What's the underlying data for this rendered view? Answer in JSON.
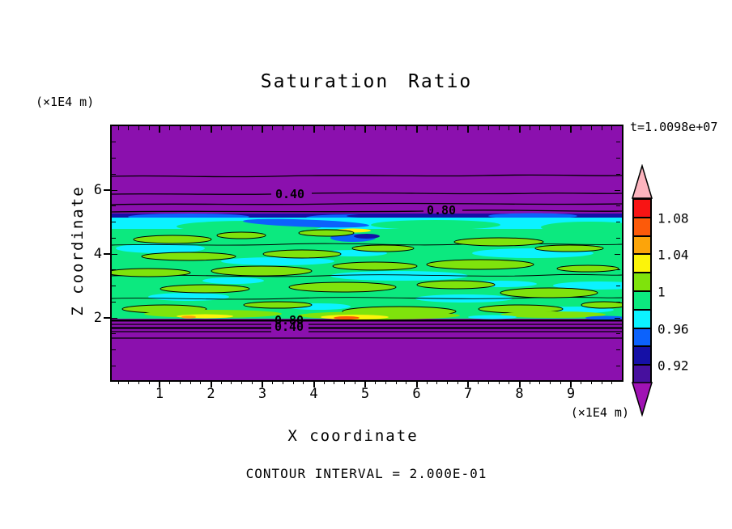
{
  "title": "Saturation Ratio",
  "time_label": "t=1.0098e+07",
  "footer_note": "CONTOUR INTERVAL = 2.000E-01",
  "axes": {
    "x": {
      "title": "X coordinate",
      "unit": "(×1E4 m)",
      "tick_labels": [
        "1",
        "2",
        "3",
        "4",
        "5",
        "6",
        "7",
        "8",
        "9"
      ]
    },
    "y": {
      "title": "Z coordinate",
      "unit": "(×1E4 m)",
      "tick_labels": [
        "6",
        "4",
        "2"
      ],
      "tick_values": [
        6,
        4,
        2
      ]
    }
  },
  "plot": {
    "contour_labels": {
      "upper_040": "0.40",
      "upper_080": "0.80",
      "lower_080": "0.80",
      "lower_040": "0.40"
    }
  },
  "colorbar": {
    "over_color": "#FCB4BE",
    "under_color": "#A012B4",
    "boxes": [
      {
        "color": "#F81414",
        "label": "1.08"
      },
      {
        "color": "#FC5A0A",
        "label": ""
      },
      {
        "color": "#FCA40A",
        "label": "1.04"
      },
      {
        "color": "#FCF40A",
        "label": ""
      },
      {
        "color": "#7FE30C",
        "label": "1"
      },
      {
        "color": "#0CE97F",
        "label": ""
      },
      {
        "color": "#0CF2FF",
        "label": "0.96"
      },
      {
        "color": "#0C62FC",
        "label": ""
      },
      {
        "color": "#1510A6",
        "label": "0.92"
      },
      {
        "color": "#47109E",
        "label": ""
      }
    ]
  },
  "chart_data": {
    "type": "heatmap",
    "subtype": "filled-contour",
    "title": "Saturation Ratio",
    "annotation_time": "t=1.0098e+07",
    "xlabel": "X coordinate",
    "x_unit": "(×1E4 m)",
    "ylabel": "Z coordinate",
    "y_unit": "(×1E4 m)",
    "xlim": [
      0,
      10
    ],
    "ylim": [
      0,
      8
    ],
    "x_ticks": [
      1,
      2,
      3,
      4,
      5,
      6,
      7,
      8,
      9
    ],
    "y_ticks": [
      2,
      4,
      6
    ],
    "contour_interval": 0.2,
    "contour_interval_label": "CONTOUR INTERVAL = 2.000E-01",
    "line_contour_labels": [
      0.4,
      0.8
    ],
    "fill_level_boundaries": [
      0.9,
      0.92,
      0.94,
      0.96,
      0.98,
      1.0,
      1.02,
      1.04,
      1.06,
      1.08,
      1.1
    ],
    "colorbar_tick_labels": [
      1.08,
      1.04,
      1,
      0.96,
      0.92
    ],
    "legend_position": "right",
    "grid": false,
    "features": [
      "purple background field (value < 0.9) above z≈5.4 and below z≈1.9",
      "near-saturated band (≈0.94–1.04, mostly green/cyan with chartreuse lenses) between z≈2 and z≈5.3 (×1E4 m) spanning full x range",
      "thin blue/navy under-saturated strip (0.92–0.96) along the top edge of the band",
      "small yellow/orange spots (≈1.02–1.06) near top-middle and along the bottom edge of the band",
      "black line contours at 0.40 and 0.80 bracketing the band above and below"
    ]
  }
}
